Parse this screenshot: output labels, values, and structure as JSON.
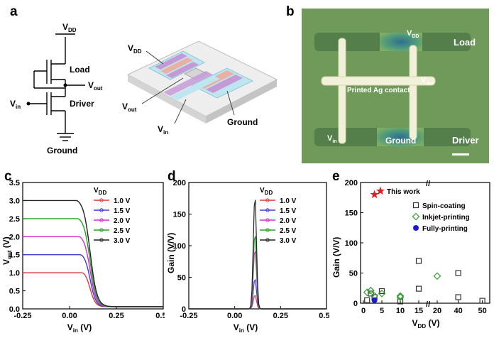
{
  "panel_labels": {
    "a": "a",
    "b": "b",
    "c": "c",
    "d": "d",
    "e": "e"
  },
  "schematic": {
    "vdd": "V",
    "vdd_sub": "DD",
    "load": "Load",
    "driver": "Driver",
    "vout": "V",
    "vout_sub": "out",
    "vin": "V",
    "vin_sub": "in",
    "ground": "Ground"
  },
  "device_3d": {
    "vdd": "V",
    "vdd_sub": "DD",
    "vout": "V",
    "vout_sub": "out",
    "vin": "V",
    "vin_sub": "in",
    "ground": "Ground",
    "colors": {
      "pink": "#e8b1a4",
      "purple": "#c49ad6",
      "cyan": "#bfe6ef",
      "gray": "#dcdcdc"
    }
  },
  "photo": {
    "vdd": "V",
    "vdd_sub": "DD",
    "load": "Load",
    "vout": "V",
    "vout_sub": "out",
    "contact": "Printed Ag contact",
    "vin": "V",
    "vin_sub": "in",
    "ground": "Ground",
    "driver": "Driver",
    "colors": {
      "background": "#6f9a5a",
      "silver": "#f1f0d8",
      "channel": "#3d7a9a"
    }
  },
  "chart_data": [
    {
      "type": "line",
      "panel": "c",
      "xlabel": "V",
      "xlabel_sub": "in",
      "xlabel_unit": " (V)",
      "ylabel": "V",
      "ylabel_sub": "out",
      "ylabel_unit": " (V)",
      "xlim": [
        -0.25,
        0.5
      ],
      "ylim": [
        0,
        3.5
      ],
      "xticks": [
        "-0.25",
        "0.00",
        "0.25",
        "0.50"
      ],
      "yticks": [
        "0.0",
        "0.5",
        "1.0",
        "1.5",
        "2.0",
        "2.5",
        "3.0",
        "3.5"
      ],
      "legend_title": "V",
      "legend_title_sub": "DD",
      "series": [
        {
          "name": "1.0 V",
          "color": "#e03a3a",
          "vdd": 1.0
        },
        {
          "name": "1.5 V",
          "color": "#3b3bd6",
          "vdd": 1.5
        },
        {
          "name": "2.0 V",
          "color": "#d62ad0",
          "vdd": 2.0
        },
        {
          "name": "2.5 V",
          "color": "#25a025",
          "vdd": 2.5
        },
        {
          "name": "3.0 V",
          "color": "#222222",
          "vdd": 3.0
        }
      ],
      "transition_vin": 0.11
    },
    {
      "type": "line",
      "panel": "d",
      "xlabel": "V",
      "xlabel_sub": "in",
      "xlabel_unit": " (V)",
      "ylabel": "Gain (V/V)",
      "xlim": [
        -0.25,
        0.5
      ],
      "ylim": [
        0,
        200
      ],
      "xticks": [
        "-0.25",
        "0.00",
        "0.25",
        "0.50"
      ],
      "yticks": [
        "0",
        "50",
        "100",
        "150",
        "200"
      ],
      "legend_title": "V",
      "legend_title_sub": "DD",
      "series": [
        {
          "name": "1.0 V",
          "color": "#e03a3a",
          "peak": 22
        },
        {
          "name": "1.5 V",
          "color": "#3b3bd6",
          "peak": 48
        },
        {
          "name": "2.0 V",
          "color": "#d62ad0",
          "peak": 95
        },
        {
          "name": "2.5 V",
          "color": "#25a025",
          "peak": 120
        },
        {
          "name": "3.0 V",
          "color": "#222222",
          "peak": 180
        }
      ],
      "peak_vin": 0.11
    },
    {
      "type": "scatter",
      "panel": "e",
      "xlabel": "V",
      "xlabel_sub": "DD",
      "xlabel_unit": " (V)",
      "ylabel": "Gain (V/V)",
      "ylim": [
        0,
        200
      ],
      "xticks": [
        "0",
        "5",
        "10",
        "15",
        "20",
        "40",
        "50"
      ],
      "yticks": [
        "0",
        "50",
        "100",
        "150",
        "200"
      ],
      "axis_break": "//",
      "series": [
        {
          "name": "This work",
          "marker": "star",
          "color": "#e02020",
          "points": [
            [
              3,
              180
            ]
          ]
        },
        {
          "name": "Spin-coating",
          "marker": "square",
          "color": "#333333",
          "points": [
            [
              1,
              5
            ],
            [
              2,
              16
            ],
            [
              3,
              10
            ],
            [
              5,
              20
            ],
            [
              10,
              3
            ],
            [
              15,
              70
            ],
            [
              15,
              24
            ],
            [
              40,
              50
            ],
            [
              40,
              10
            ],
            [
              50,
              4
            ]
          ]
        },
        {
          "name": "Inkjet-printing",
          "marker": "diamond",
          "color": "#2f9a2f",
          "points": [
            [
              1,
              18
            ],
            [
              2,
              21
            ],
            [
              3,
              12
            ],
            [
              5,
              16
            ],
            [
              10,
              10
            ],
            [
              10,
              12
            ],
            [
              20,
              45
            ]
          ]
        },
        {
          "name": "Fully-printing",
          "marker": "circle",
          "color": "#1a1ad6",
          "points": [
            [
              3,
              5
            ]
          ]
        }
      ]
    }
  ]
}
